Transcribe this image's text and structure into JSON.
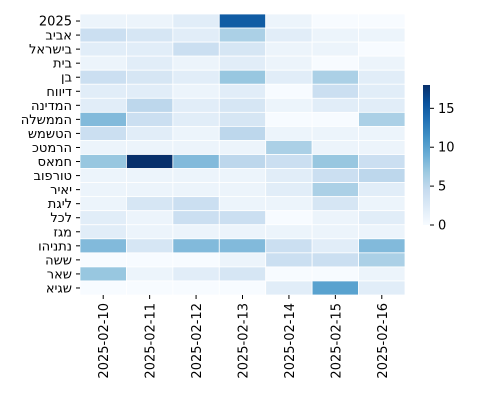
{
  "chart_data": {
    "type": "heatmap",
    "title": "",
    "xlabel": "",
    "ylabel": "",
    "columns": [
      "2025-02-10",
      "2025-02-11",
      "2025-02-12",
      "2025-02-13",
      "2025-02-14",
      "2025-02-15",
      "2025-02-16"
    ],
    "rows": [
      "2025",
      "אביב",
      "בישראל",
      "בית",
      "בן",
      "דיווח",
      "המדינה",
      "הממשלה",
      "הטשמש",
      "הרמטכ",
      "חמאס",
      "טורפוב",
      "יאיר",
      "ליגת",
      "לכל",
      "מגז",
      "נתניהו",
      "ששה",
      "שאר",
      "שגיא"
    ],
    "values": [
      [
        1,
        1,
        2,
        15,
        1,
        0,
        0
      ],
      [
        4,
        3,
        2,
        6,
        2,
        1,
        1
      ],
      [
        2,
        2,
        4,
        3,
        1,
        1,
        0
      ],
      [
        1,
        2,
        1,
        2,
        1,
        0,
        1
      ],
      [
        4,
        3,
        2,
        7,
        2,
        6,
        2
      ],
      [
        2,
        2,
        1,
        2,
        0,
        4,
        2
      ],
      [
        2,
        5,
        2,
        3,
        1,
        2,
        2
      ],
      [
        8,
        4,
        2,
        3,
        0,
        0,
        6
      ],
      [
        4,
        2,
        1,
        5,
        1,
        1,
        1
      ],
      [
        1,
        1,
        1,
        1,
        6,
        1,
        1
      ],
      [
        7,
        18,
        8,
        5,
        4,
        7,
        4
      ],
      [
        1,
        1,
        1,
        1,
        2,
        4,
        5
      ],
      [
        1,
        1,
        1,
        1,
        2,
        6,
        2
      ],
      [
        1,
        3,
        4,
        1,
        1,
        3,
        1
      ],
      [
        2,
        1,
        4,
        4,
        0,
        1,
        2
      ],
      [
        2,
        1,
        1,
        1,
        1,
        1,
        1
      ],
      [
        8,
        3,
        8,
        8,
        4,
        2,
        8
      ],
      [
        0,
        0,
        0,
        1,
        4,
        4,
        6
      ],
      [
        7,
        1,
        2,
        3,
        0,
        0,
        1
      ],
      [
        0,
        0,
        0,
        0,
        2,
        10,
        2
      ]
    ],
    "colorbar": {
      "min": 0,
      "max": 18,
      "ticks": [
        0,
        5,
        10,
        15
      ]
    },
    "colormap": [
      "#f7fbff",
      "#deebf7",
      "#c6dbef",
      "#9ecae1",
      "#6baed6",
      "#4292c6",
      "#2171b5",
      "#08519c",
      "#08306b"
    ],
    "grid_line_color": "#ffffff"
  }
}
